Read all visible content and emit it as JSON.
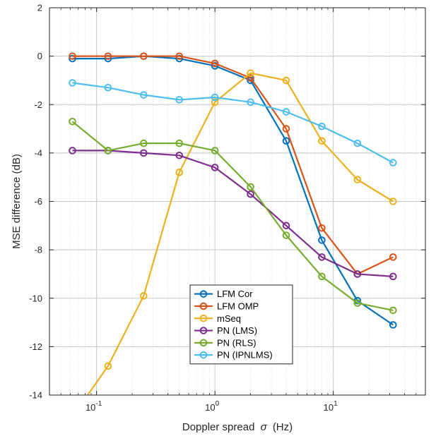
{
  "chart_data": {
    "type": "line",
    "xscale": "log",
    "xlim": [
      0.04,
      60
    ],
    "ylim": [
      -14,
      2
    ],
    "xlabel_main": "Doppler spread",
    "xlabel_symbol": "σ",
    "xlabel_unit": "(Hz)",
    "ylabel": "MSE difference  (dB)",
    "grid": true,
    "minor_grid_x": true,
    "legend_position": "lower-center",
    "y_ticks": [
      {
        "value": 2,
        "label": "2"
      },
      {
        "value": 0,
        "label": "0"
      },
      {
        "value": -2,
        "label": "-2"
      },
      {
        "value": -4,
        "label": "-4"
      },
      {
        "value": -6,
        "label": "-6"
      },
      {
        "value": -8,
        "label": "-8"
      },
      {
        "value": -10,
        "label": "-10"
      },
      {
        "value": -12,
        "label": "-12"
      },
      {
        "value": -14,
        "label": "-14"
      }
    ],
    "x_ticks": [
      {
        "value": 0.1,
        "base": "10",
        "exp": "-1"
      },
      {
        "value": 1,
        "base": "10",
        "exp": "0"
      },
      {
        "value": 10,
        "base": "10",
        "exp": "1"
      }
    ],
    "x": [
      0.0625,
      0.125,
      0.25,
      0.5,
      1,
      2,
      4,
      8,
      16,
      32
    ],
    "series": [
      {
        "name": "LFM Cor",
        "color": "#0072BD",
        "values": [
          -0.1,
          -0.1,
          0.0,
          -0.1,
          -0.4,
          -1.0,
          -3.5,
          -7.6,
          -10.1,
          -11.1
        ]
      },
      {
        "name": "LFM OMP",
        "color": "#D95319",
        "values": [
          0.0,
          0.0,
          0.0,
          0.0,
          -0.3,
          -0.9,
          -3.0,
          -7.1,
          -9.0,
          -8.3
        ]
      },
      {
        "name": "mSeq",
        "color": "#EDB120",
        "values": [
          -14.9,
          -12.8,
          -9.9,
          -4.8,
          -1.9,
          -0.7,
          -1.0,
          -3.5,
          -5.1,
          -6.0
        ]
      },
      {
        "name": "PN (LMS)",
        "color": "#7E2F8E",
        "values": [
          -3.9,
          -3.9,
          -4.0,
          -4.1,
          -4.6,
          -5.7,
          -7.0,
          -8.3,
          -9.0,
          -9.1
        ]
      },
      {
        "name": "PN (RLS)",
        "color": "#77AC30",
        "values": [
          -2.7,
          -3.9,
          -3.6,
          -3.6,
          -3.9,
          -5.4,
          -7.4,
          -9.1,
          -10.2,
          -10.5
        ]
      },
      {
        "name": "PN (IPNLMS)",
        "color": "#4DBEEE",
        "values": [
          -1.1,
          -1.3,
          -1.6,
          -1.8,
          -1.7,
          -1.9,
          -2.3,
          -2.9,
          -3.6,
          -4.4
        ]
      }
    ]
  }
}
